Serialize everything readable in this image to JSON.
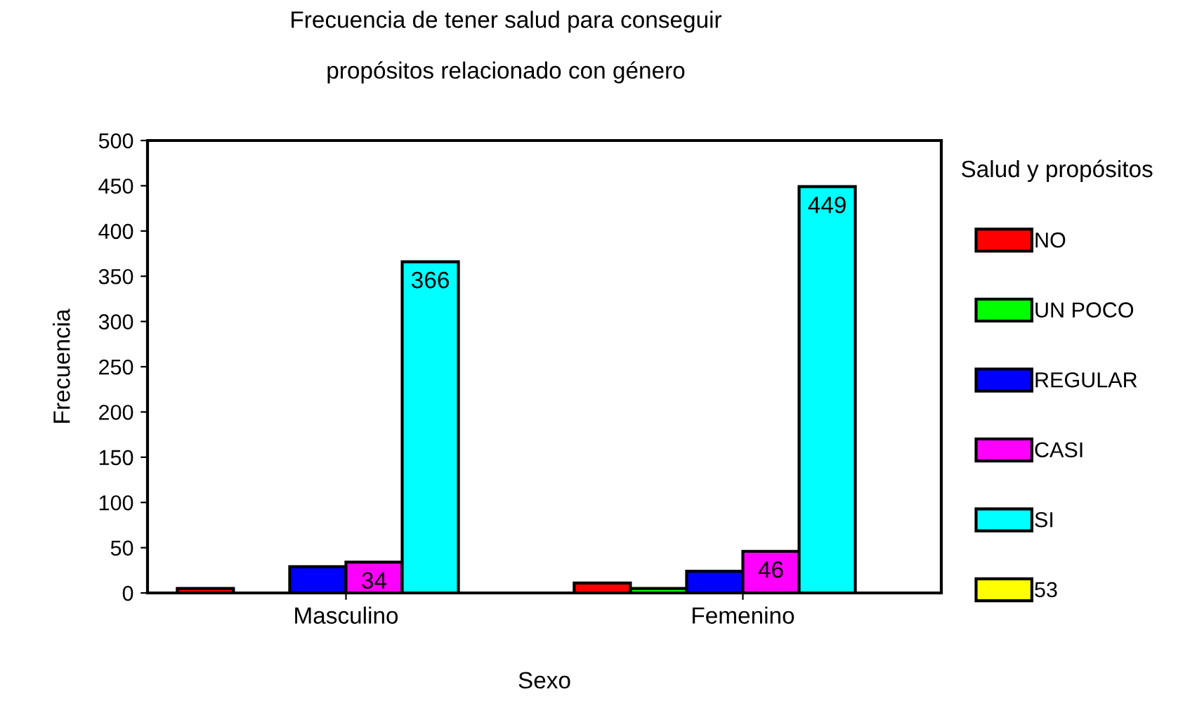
{
  "chart_data": {
    "type": "bar",
    "title": "Frecuencia de tener salud para conseguir\n\npropósitos relacionado con género",
    "xlabel": "Sexo",
    "ylabel": "Frecuencia",
    "legend_title": "Salud y propósitos",
    "categories": [
      "Masculino",
      "Femenino"
    ],
    "series": [
      {
        "name": "NO",
        "color": "#ff0000",
        "values": [
          5,
          11
        ]
      },
      {
        "name": "UN POCO",
        "color": "#00ff00",
        "values": [
          0,
          5
        ]
      },
      {
        "name": "REGULAR",
        "color": "#0000ff",
        "values": [
          29,
          24
        ]
      },
      {
        "name": "CASI",
        "color": "#ff00ff",
        "values": [
          34,
          46
        ],
        "value_labels": [
          "34",
          "46"
        ]
      },
      {
        "name": "SI",
        "color": "#00ffff",
        "values": [
          366,
          449
        ],
        "value_labels": [
          "366",
          "449"
        ]
      },
      {
        "name": "53",
        "color": "#ffff00",
        "values": [
          0,
          0
        ]
      }
    ],
    "ylim": [
      0,
      500
    ],
    "yticks": [
      0,
      50,
      100,
      150,
      200,
      250,
      300,
      350,
      400,
      450,
      500
    ],
    "grid": false,
    "legend": "right"
  }
}
